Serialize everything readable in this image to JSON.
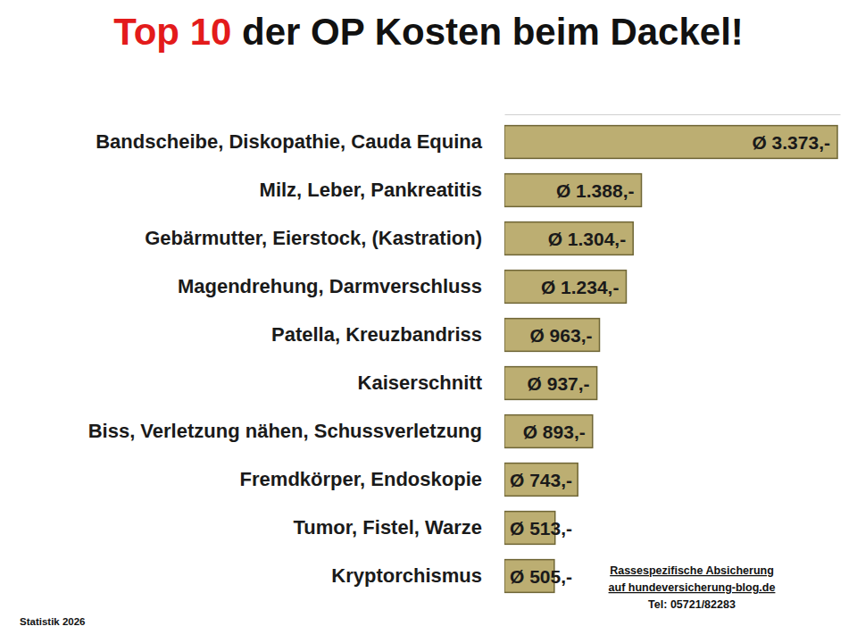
{
  "chart_data": {
    "type": "bar",
    "orientation": "horizontal",
    "title": "Top 10 der OP Kosten beim Dackel!",
    "categories": [
      "Bandscheibe, Diskopathie, Cauda Equina",
      "Milz, Leber, Pankreatitis",
      "Gebärmutter, Eierstock, (Kastration)",
      "Magendrehung, Darmverschluss",
      "Patella, Kreuzbandriss",
      "Kaiserschnitt",
      "Biss, Verletzung nähen, Schussverletzung",
      "Fremdkörper, Endoskopie",
      "Tumor, Fistel, Warze",
      "Kryptorchismus"
    ],
    "values": [
      3373,
      1388,
      1304,
      1234,
      963,
      937,
      893,
      743,
      513,
      505
    ],
    "value_labels": [
      "Ø 3.373,-",
      "Ø 1.388,-",
      "Ø 1.304,-",
      "Ø 1.234,-",
      "Ø 963,-",
      "Ø 937,-",
      "Ø 893,-",
      "Ø 743,-",
      "Ø 513,-",
      "Ø 505,-"
    ],
    "color": "#bcae72",
    "xlim": [
      0,
      3400
    ],
    "tick_labels": "y",
    "data_labels": true,
    "grid": false,
    "annotations": [
      "Rassespezifische Absicherung",
      "auf hundeversicherung-blog.de",
      "Tel: 05721/82283"
    ],
    "note": "Statistik 2026"
  }
}
